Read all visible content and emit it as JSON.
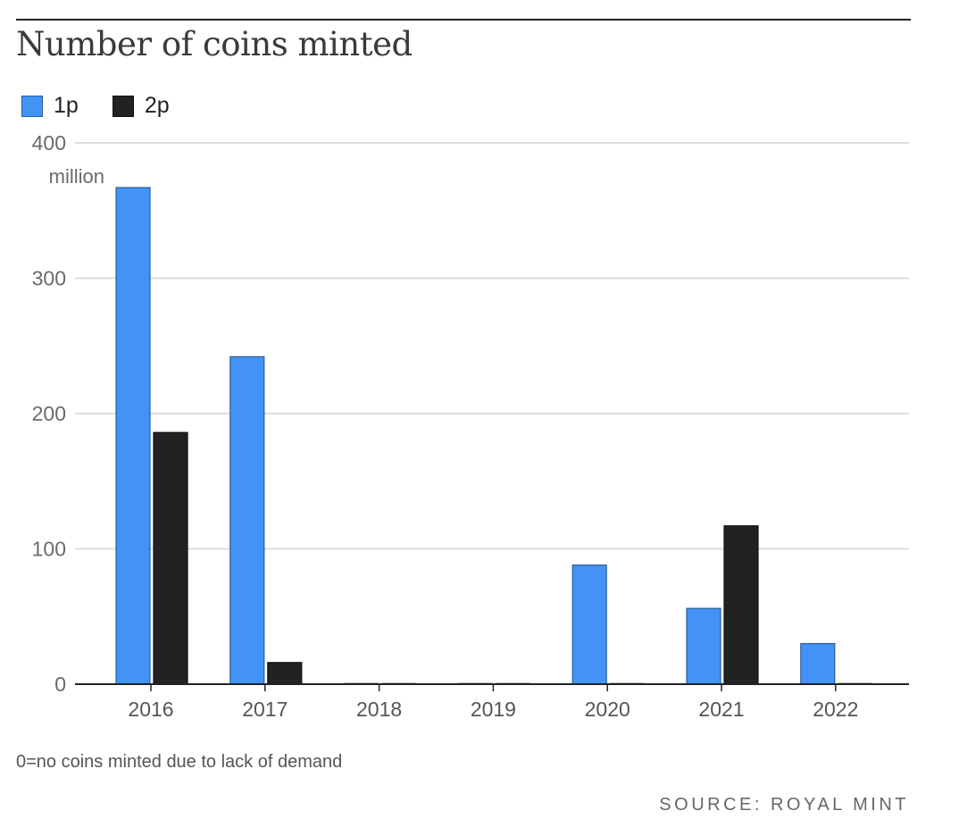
{
  "header": {
    "title": "Number of coins minted"
  },
  "legend": [
    {
      "label": "1p",
      "color": "#4293f5"
    },
    {
      "label": "2p",
      "color": "#222222"
    }
  ],
  "footer": {
    "note": "0=no coins minted due to lack of demand",
    "source": "SOURCE: ROYAL MINT"
  },
  "chart_data": {
    "type": "bar",
    "title": "Number of coins minted",
    "ylabel_unit": "million",
    "categories": [
      "2016",
      "2017",
      "2018",
      "2019",
      "2020",
      "2021",
      "2022"
    ],
    "series": [
      {
        "name": "1p",
        "color": "#4293f5",
        "values": [
          367,
          242,
          0,
          0,
          88,
          56,
          30
        ]
      },
      {
        "name": "2p",
        "color": "#222222",
        "values": [
          186,
          16,
          0,
          0,
          0,
          117,
          0
        ]
      }
    ],
    "ylim": [
      0,
      400
    ],
    "yticks": [
      0,
      100,
      200,
      300,
      400
    ],
    "ytick_labels": [
      "0",
      "100",
      "200",
      "300",
      "400"
    ],
    "grid": true,
    "legend_position": "top-left"
  }
}
